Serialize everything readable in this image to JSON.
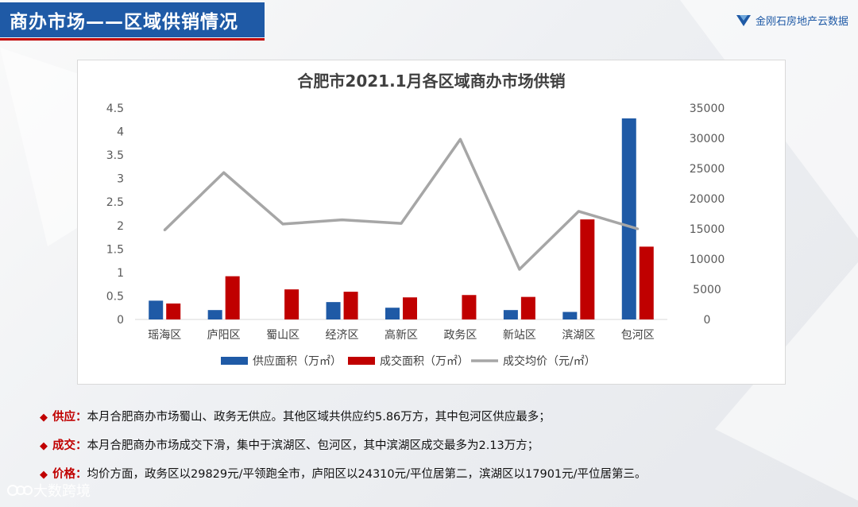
{
  "header": {
    "title": "商办市场——区域供销情况",
    "brand": "金刚石房地产云数据"
  },
  "chart_data": {
    "type": "bar",
    "title": "合肥市2021.1月各区域商办市场供销",
    "categories": [
      "瑶海区",
      "庐阳区",
      "蜀山区",
      "经济区",
      "高新区",
      "政务区",
      "新站区",
      "滨湖区",
      "包河区"
    ],
    "series": [
      {
        "name": "供应面积（万㎡）",
        "type": "bar",
        "axis": "left",
        "color": "#1f5aa6",
        "values": [
          0.4,
          0.2,
          0,
          0.37,
          0.25,
          0,
          0.2,
          0.16,
          4.28
        ]
      },
      {
        "name": "成交面积（万㎡）",
        "type": "bar",
        "axis": "left",
        "color": "#c00000",
        "values": [
          0.34,
          0.92,
          0.64,
          0.59,
          0.47,
          0.52,
          0.48,
          2.13,
          1.55
        ]
      },
      {
        "name": "成交均价（元/㎡）",
        "type": "line",
        "axis": "right",
        "color": "#a6a6a6",
        "values": [
          14800,
          24310,
          15800,
          16500,
          15900,
          29829,
          8300,
          17901,
          15000
        ]
      }
    ],
    "y_left": {
      "range": [
        0,
        4.5
      ],
      "ticks": [
        "0",
        "0.5",
        "1",
        "1.5",
        "2",
        "2.5",
        "3",
        "3.5",
        "4",
        "4.5"
      ]
    },
    "y_right": {
      "range": [
        0,
        35000
      ],
      "ticks": [
        "0",
        "5000",
        "10000",
        "15000",
        "20000",
        "25000",
        "30000",
        "35000"
      ]
    },
    "grid": false,
    "legend_position": "bottom"
  },
  "notes": [
    {
      "label": "供应：",
      "text": "本月合肥商办市场蜀山、政务无供应。其他区域共供应约5.86万方，其中包河区供应最多；"
    },
    {
      "label": "成交：",
      "text": "本月合肥商办市场成交下滑，集中于滨湖区、包河区，其中滨湖区成交最多为2.13万方；"
    },
    {
      "label": "价格：",
      "text": "均价方面，政务区以29829元/平领跑全市，庐阳区以24310元/平位居第二，滨湖区以17901元/平位居第三。"
    }
  ],
  "watermark": {
    "text": "大数跨境"
  },
  "icons": {
    "note_bullet": "diamond-icon",
    "brand_logo": "diamond-logo-icon",
    "watermark": "watermark-logo-icon"
  }
}
